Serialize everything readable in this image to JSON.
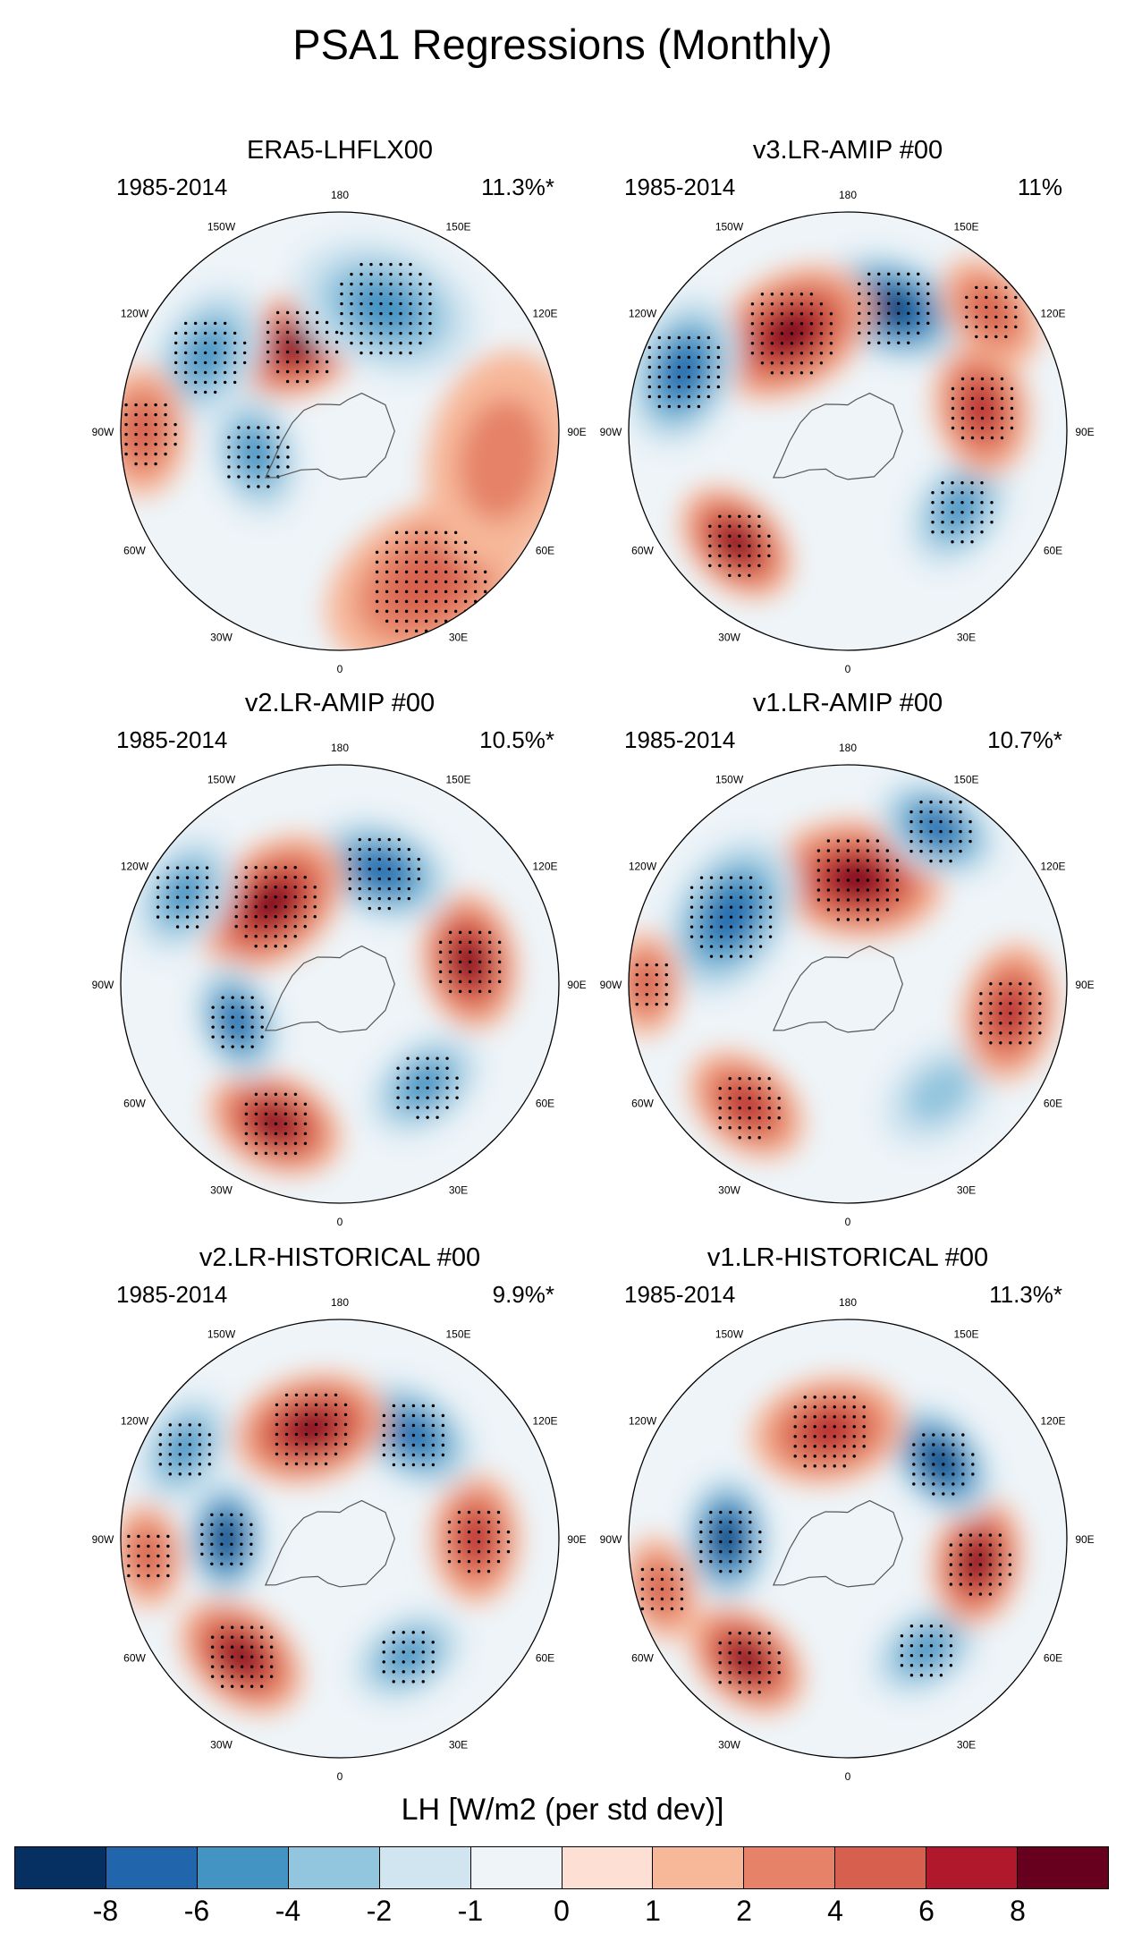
{
  "title": "PSA1 Regressions (Monthly)",
  "chart_data": {
    "type": "heatmap",
    "title": "PSA1 Regressions (Monthly)",
    "projection": "south-polar-stereographic",
    "longitude_labels": [
      "0",
      "30E",
      "60E",
      "90E",
      "120E",
      "150E",
      "180",
      "150W",
      "120W",
      "90W",
      "60W",
      "30W"
    ],
    "panels": [
      {
        "title": "ERA5-LHFLX00",
        "period": "1985-2014",
        "variance": "11.3%*",
        "anomalies": [
          {
            "lon": 205,
            "dist": 0.44,
            "value": 8,
            "spread": 0.17
          },
          {
            "lon": 240,
            "dist": 0.7,
            "value": -4,
            "spread": 0.17
          },
          {
            "lon": 285,
            "dist": 0.4,
            "value": -4,
            "spread": 0.15
          },
          {
            "lon": 160,
            "dist": 0.6,
            "value": -4,
            "spread": 0.22
          },
          {
            "lon": 30,
            "dist": 0.8,
            "value": 4,
            "spread": 0.25
          },
          {
            "lon": 80,
            "dist": 0.75,
            "value": 2,
            "spread": 0.25
          },
          {
            "lon": 270,
            "dist": 0.9,
            "value": 4,
            "spread": 0.15
          }
        ]
      },
      {
        "title": "v3.LR-AMIP  #00",
        "period": "1985-2014",
        "variance": "11%",
        "anomalies": [
          {
            "lon": 315,
            "dist": 0.72,
            "value": 8,
            "spread": 0.15
          },
          {
            "lon": 55,
            "dist": 0.62,
            "value": -4,
            "spread": 0.15
          },
          {
            "lon": 100,
            "dist": 0.62,
            "value": 6,
            "spread": 0.16
          },
          {
            "lon": 160,
            "dist": 0.6,
            "value": -8,
            "spread": 0.18
          },
          {
            "lon": 210,
            "dist": 0.52,
            "value": 8,
            "spread": 0.2
          },
          {
            "lon": 250,
            "dist": 0.8,
            "value": -6,
            "spread": 0.18
          },
          {
            "lon": 130,
            "dist": 0.85,
            "value": 4,
            "spread": 0.14
          }
        ]
      },
      {
        "title": "v2.LR-AMIP  #00",
        "period": "1985-2014",
        "variance": "10.5%*",
        "anomalies": [
          {
            "lon": 335,
            "dist": 0.7,
            "value": 8,
            "spread": 0.16
          },
          {
            "lon": 40,
            "dist": 0.6,
            "value": -4,
            "spread": 0.15
          },
          {
            "lon": 100,
            "dist": 0.6,
            "value": 8,
            "spread": 0.16
          },
          {
            "lon": 160,
            "dist": 0.55,
            "value": -6,
            "spread": 0.17
          },
          {
            "lon": 220,
            "dist": 0.48,
            "value": 8,
            "spread": 0.19
          },
          {
            "lon": 290,
            "dist": 0.5,
            "value": -6,
            "spread": 0.14
          },
          {
            "lon": 240,
            "dist": 0.82,
            "value": -4,
            "spread": 0.15
          }
        ]
      },
      {
        "title": "v1.LR-AMIP  #00",
        "period": "1985-2014",
        "variance": "10.7%*",
        "anomalies": [
          {
            "lon": 320,
            "dist": 0.72,
            "value": 6,
            "spread": 0.15
          },
          {
            "lon": 40,
            "dist": 0.65,
            "value": -2,
            "spread": 0.15
          },
          {
            "lon": 80,
            "dist": 0.75,
            "value": 6,
            "spread": 0.16
          },
          {
            "lon": 175,
            "dist": 0.48,
            "value": 8,
            "spread": 0.2
          },
          {
            "lon": 240,
            "dist": 0.62,
            "value": -6,
            "spread": 0.2
          },
          {
            "lon": 150,
            "dist": 0.82,
            "value": -6,
            "spread": 0.15
          },
          {
            "lon": 270,
            "dist": 0.92,
            "value": 4,
            "spread": 0.12
          }
        ]
      },
      {
        "title": "v2.LR-HISTORICAL  #00",
        "period": "1985-2014",
        "variance": "9.9%*",
        "anomalies": [
          {
            "lon": 320,
            "dist": 0.7,
            "value": 8,
            "spread": 0.16
          },
          {
            "lon": 30,
            "dist": 0.62,
            "value": -4,
            "spread": 0.14
          },
          {
            "lon": 90,
            "dist": 0.62,
            "value": 6,
            "spread": 0.15
          },
          {
            "lon": 145,
            "dist": 0.58,
            "value": -6,
            "spread": 0.16
          },
          {
            "lon": 195,
            "dist": 0.52,
            "value": 8,
            "spread": 0.18
          },
          {
            "lon": 270,
            "dist": 0.52,
            "value": -8,
            "spread": 0.14
          },
          {
            "lon": 240,
            "dist": 0.82,
            "value": -4,
            "spread": 0.14
          },
          {
            "lon": 275,
            "dist": 0.88,
            "value": 4,
            "spread": 0.12
          }
        ]
      },
      {
        "title": "v1.LR-HISTORICAL  #00",
        "period": "1985-2014",
        "variance": "11.3%*",
        "anomalies": [
          {
            "lon": 320,
            "dist": 0.72,
            "value": 8,
            "spread": 0.15
          },
          {
            "lon": 35,
            "dist": 0.62,
            "value": -4,
            "spread": 0.14
          },
          {
            "lon": 80,
            "dist": 0.6,
            "value": 8,
            "spread": 0.15
          },
          {
            "lon": 130,
            "dist": 0.55,
            "value": -8,
            "spread": 0.15
          },
          {
            "lon": 190,
            "dist": 0.5,
            "value": 6,
            "spread": 0.18
          },
          {
            "lon": 270,
            "dist": 0.55,
            "value": -8,
            "spread": 0.15
          },
          {
            "lon": 285,
            "dist": 0.88,
            "value": 4,
            "spread": 0.12
          }
        ]
      }
    ],
    "colorbar": {
      "title": "LH [W/m2 (per std dev)]",
      "levels": [
        "-8",
        "-6",
        "-4",
        "-2",
        "-1",
        "0",
        "1",
        "2",
        "4",
        "6",
        "8"
      ],
      "colors": [
        "#053061",
        "#2166ac",
        "#4393c3",
        "#92c5de",
        "#d1e5f0",
        "#eef4f8",
        "#fde0d3",
        "#f7b799",
        "#e58267",
        "#d6604d",
        "#b2182b",
        "#67001f"
      ]
    }
  }
}
